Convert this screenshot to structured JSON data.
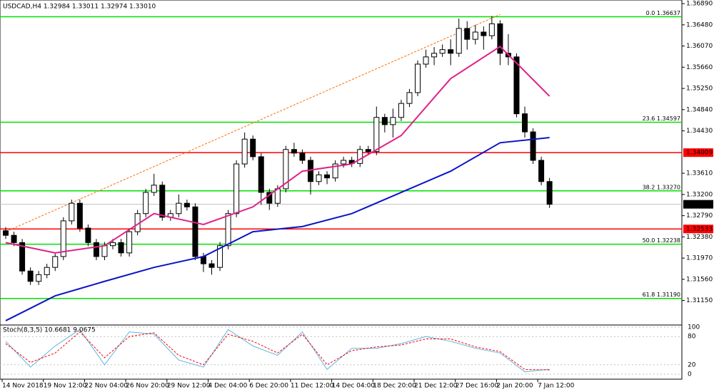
{
  "chart_data": [
    {
      "type": "candlestick",
      "title": "USDCAD,H4  1.32984 1.33011 1.32974 1.33010",
      "categories": [
        "14 Nov 2018",
        null,
        null,
        null,
        null,
        "19 Nov 12:00",
        null,
        null,
        null,
        null,
        "22 Nov 04:00",
        null,
        null,
        null,
        null,
        "26 Nov 20:00",
        null,
        null,
        null,
        null,
        "29 Nov 12:00",
        null,
        null,
        null,
        null,
        "4 Dec 04:00",
        null,
        null,
        null,
        null,
        "6 Dec 20:00",
        null,
        null,
        null,
        null,
        "11 Dec 12:00",
        null,
        null,
        null,
        null,
        "14 Dec 04:00",
        null,
        null,
        null,
        null,
        "18 Dec 20:00",
        null,
        null,
        null,
        null,
        "21 Dec 12:00",
        null,
        null,
        null,
        null,
        "27 Dec 16:00",
        null,
        null,
        null,
        null,
        "2 Jan 20:00",
        null,
        null,
        null,
        null,
        "7 Jan 12:00",
        null
      ],
      "open": [
        1.325,
        1.3241,
        1.3227,
        1.3172,
        1.3152,
        1.3165,
        1.3179,
        1.32,
        1.3269,
        1.3303,
        1.3255,
        1.3227,
        1.32,
        1.3221,
        1.3227,
        1.3207,
        1.3248,
        1.3283,
        1.3324,
        1.3338,
        1.3276,
        1.3283,
        1.3303,
        1.3296,
        1.32,
        1.3186,
        1.3179,
        1.3221,
        1.3283,
        1.3379,
        1.3427,
        1.3393,
        1.3324,
        1.3303,
        1.3331,
        1.3407,
        1.34,
        1.3386,
        1.3345,
        1.3358,
        1.3352,
        1.3379,
        1.3386,
        1.338,
        1.3407,
        1.3403,
        1.3469,
        1.3455,
        1.3469,
        1.3496,
        1.3517,
        1.3572,
        1.3586,
        1.3593,
        1.36,
        1.3593,
        1.3641,
        1.362,
        1.3634,
        1.3627,
        1.365,
        1.3593,
        1.3586,
        1.3476,
        1.3441,
        1.3386,
        1.3345
      ],
      "high": [
        1.3257,
        1.3248,
        1.3234,
        1.3179,
        1.3172,
        1.3186,
        1.3207,
        1.3276,
        1.331,
        1.331,
        1.3262,
        1.3234,
        1.3228,
        1.3234,
        1.3234,
        1.3255,
        1.329,
        1.3331,
        1.336,
        1.3345,
        1.329,
        1.332,
        1.331,
        1.3303,
        1.3207,
        1.3193,
        1.3228,
        1.329,
        1.3386,
        1.344,
        1.3434,
        1.34,
        1.3331,
        1.3338,
        1.3414,
        1.342,
        1.3407,
        1.3393,
        1.3365,
        1.3365,
        1.3386,
        1.3393,
        1.3393,
        1.3414,
        1.3414,
        1.349,
        1.3476,
        1.3486,
        1.3503,
        1.3524,
        1.3579,
        1.36,
        1.3605,
        1.361,
        1.362,
        1.366,
        1.3655,
        1.3648,
        1.3645,
        1.3665,
        1.3657,
        1.363,
        1.3593,
        1.349,
        1.3448,
        1.3393,
        1.3352
      ],
      "low": [
        1.3234,
        1.322,
        1.3165,
        1.3145,
        1.3145,
        1.3158,
        1.3172,
        1.3193,
        1.3262,
        1.3248,
        1.322,
        1.3193,
        1.3193,
        1.3214,
        1.32,
        1.32,
        1.3241,
        1.3276,
        1.3317,
        1.3269,
        1.3269,
        1.3276,
        1.3289,
        1.3193,
        1.317,
        1.3165,
        1.3172,
        1.3214,
        1.3276,
        1.3372,
        1.3386,
        1.33,
        1.329,
        1.3296,
        1.3324,
        1.3393,
        1.3379,
        1.332,
        1.3338,
        1.334,
        1.3345,
        1.3372,
        1.3373,
        1.3373,
        1.3396,
        1.3396,
        1.344,
        1.343,
        1.3462,
        1.3489,
        1.351,
        1.3565,
        1.357,
        1.3586,
        1.357,
        1.3586,
        1.36,
        1.361,
        1.36,
        1.362,
        1.357,
        1.357,
        1.3469,
        1.343,
        1.3379,
        1.3338,
        1.3294
      ],
      "close": [
        1.3241,
        1.3227,
        1.3172,
        1.3152,
        1.3165,
        1.3179,
        1.32,
        1.3269,
        1.3303,
        1.3255,
        1.3227,
        1.32,
        1.3221,
        1.3227,
        1.3207,
        1.3248,
        1.3283,
        1.3324,
        1.3338,
        1.3276,
        1.3283,
        1.3303,
        1.3296,
        1.32,
        1.3186,
        1.3179,
        1.3221,
        1.3283,
        1.3379,
        1.3427,
        1.3393,
        1.3324,
        1.3303,
        1.3331,
        1.3407,
        1.34,
        1.3386,
        1.3345,
        1.3358,
        1.3352,
        1.3379,
        1.3386,
        1.338,
        1.3407,
        1.3403,
        1.3469,
        1.3455,
        1.3469,
        1.3496,
        1.3517,
        1.3572,
        1.3586,
        1.3593,
        1.36,
        1.3593,
        1.3641,
        1.362,
        1.3634,
        1.3627,
        1.365,
        1.3593,
        1.3586,
        1.3476,
        1.3441,
        1.3386,
        1.3345,
        1.3301
      ],
      "series": [
        {
          "color": "#e0208a",
          "x": [
            0,
            6,
            12,
            18,
            24,
            30,
            36,
            42,
            48,
            54,
            60,
            66
          ],
          "values": [
            1.3227,
            1.3207,
            1.3221,
            1.3283,
            1.3262,
            1.3296,
            1.3365,
            1.3379,
            1.3434,
            1.3544,
            1.3606,
            1.351
          ]
        },
        {
          "color": "#0a14c8",
          "x": [
            0,
            6,
            12,
            18,
            24,
            30,
            36,
            42,
            48,
            54,
            60,
            66
          ],
          "values": [
            1.3076,
            1.3124,
            1.3152,
            1.3179,
            1.32,
            1.3248,
            1.3258,
            1.3283,
            1.3324,
            1.3365,
            1.342,
            1.343
          ]
        }
      ],
      "trend_line": {
        "x": [
          0,
          60
        ],
        "values": [
          1.3248,
          1.3668
        ],
        "color": "#ff6a00"
      },
      "fib_levels": [
        {
          "value": 1.36637,
          "label": "0.0 1.36637"
        },
        {
          "value": 1.34597,
          "label": "23.6 1.34597"
        },
        {
          "value": 1.3327,
          "label": "38.2 1.33270"
        },
        {
          "value": 1.32238,
          "label": "50.0 1.32238"
        },
        {
          "value": 1.3119,
          "label": "61.8 1.31190"
        }
      ],
      "fib_color": "#00e000",
      "levels": [
        {
          "value": 1.34009,
          "label": "1.34009"
        },
        {
          "value": 1.32533,
          "label": "1.32533"
        }
      ],
      "level_color": "#ff0000",
      "current_price": {
        "value": 1.3301,
        "label": "1.33010"
      },
      "ylim": [
        1.3069,
        1.3696
      ],
      "yticks": [
        {
          "value": 1.3689,
          "label": "1.36890"
        },
        {
          "value": 1.3648,
          "label": "1.36480"
        },
        {
          "value": 1.3607,
          "label": "1.36070"
        },
        {
          "value": 1.3566,
          "label": "1.35660"
        },
        {
          "value": 1.3525,
          "label": "1.35250"
        },
        {
          "value": 1.3484,
          "label": "1.34840"
        },
        {
          "value": 1.3443,
          "label": "1.34430"
        },
        {
          "value": 1.3361,
          "label": "1.33610"
        },
        {
          "value": 1.332,
          "label": "1.33200"
        },
        {
          "value": 1.3279,
          "label": "1.32790"
        },
        {
          "value": 1.3238,
          "label": "1.32380"
        },
        {
          "value": 1.3197,
          "label": "1.31970"
        },
        {
          "value": 1.3156,
          "label": "1.31560"
        },
        {
          "value": 1.3115,
          "label": "1.31150"
        }
      ]
    },
    {
      "type": "line",
      "title": "Stoch(8,3,5) 10.6681 9.0675",
      "x": [
        0,
        3,
        6,
        9,
        12,
        15,
        18,
        21,
        24,
        27,
        30,
        33,
        36,
        39,
        42,
        45,
        48,
        51,
        54,
        57,
        60,
        63,
        66
      ],
      "series": [
        {
          "color": "#5fb4e0",
          "dashed": false,
          "values": [
            70,
            15,
            60,
            95,
            20,
            90,
            85,
            30,
            15,
            95,
            60,
            40,
            90,
            10,
            55,
            55,
            65,
            80,
            70,
            55,
            45,
            5,
            10.6681
          ]
        },
        {
          "color": "#ff0000",
          "dashed": true,
          "values": [
            65,
            25,
            45,
            90,
            35,
            80,
            88,
            40,
            20,
            85,
            70,
            45,
            85,
            20,
            50,
            58,
            62,
            75,
            75,
            58,
            48,
            10,
            9.0675
          ]
        }
      ],
      "ylim": [
        0,
        100
      ],
      "yticks": [
        100,
        80,
        20,
        0
      ]
    }
  ]
}
